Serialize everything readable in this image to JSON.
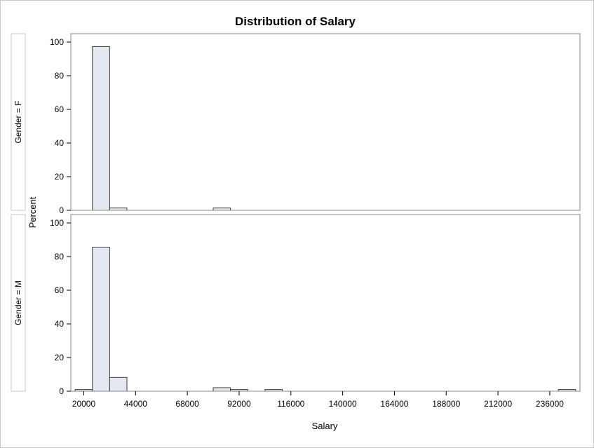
{
  "chart_data": {
    "type": "bar",
    "title": "Distribution of Salary",
    "xlabel": "Salary",
    "ylabel": "Percent",
    "x_ticks": [
      20000,
      44000,
      68000,
      92000,
      116000,
      140000,
      164000,
      188000,
      212000,
      236000
    ],
    "xlim": [
      14000,
      250000
    ],
    "ylim": [
      0,
      105
    ],
    "y_ticks": [
      0,
      20,
      40,
      60,
      80,
      100
    ],
    "bin_width": 8000,
    "grid": false,
    "colors": {
      "bar_fill": "#e3e8f3",
      "bar_stroke": "#3c3c3c",
      "frame": "#888888",
      "strip_border": "#c8c8c8"
    },
    "panels": [
      {
        "label": "Gender = F",
        "bins": [
          {
            "x": 28000,
            "value": 97.3
          },
          {
            "x": 36000,
            "value": 1.4
          },
          {
            "x": 84000,
            "value": 1.4
          }
        ]
      },
      {
        "label": "Gender = M",
        "bins": [
          {
            "x": 20000,
            "value": 1.0
          },
          {
            "x": 28000,
            "value": 85.6
          },
          {
            "x": 36000,
            "value": 8.2
          },
          {
            "x": 84000,
            "value": 2.1
          },
          {
            "x": 92000,
            "value": 1.0
          },
          {
            "x": 108000,
            "value": 1.0
          },
          {
            "x": 244000,
            "value": 1.0
          }
        ]
      }
    ]
  }
}
